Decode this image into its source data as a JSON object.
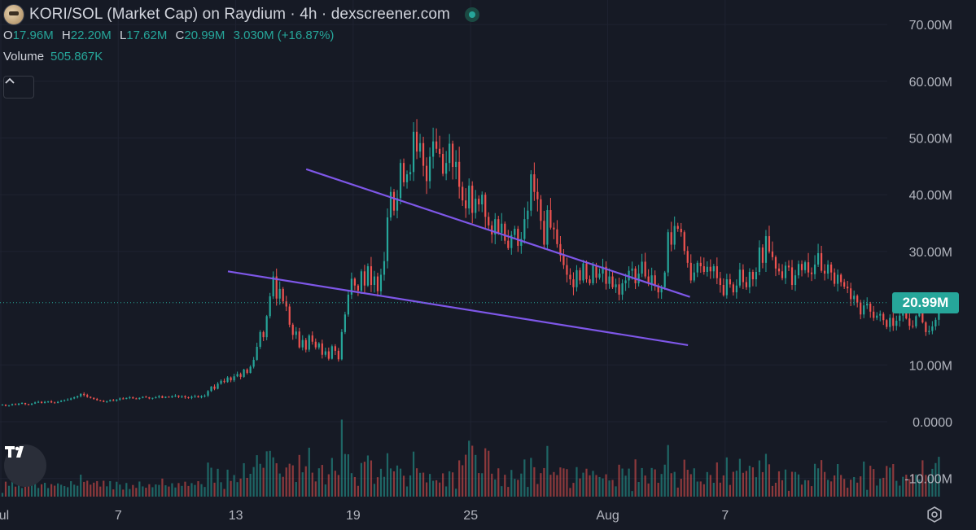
{
  "header": {
    "title": "KORI/SOL (Market Cap) on Raydium · 4h · dexscreener.com",
    "ohlc": [
      {
        "key": "O",
        "value": "17.96M"
      },
      {
        "key": "H",
        "value": "22.20M"
      },
      {
        "key": "L",
        "value": "17.62M"
      },
      {
        "key": "C",
        "value": "20.99M"
      },
      {
        "key": "",
        "value": "3.030M (+16.87%)"
      }
    ],
    "volume_label": "Volume",
    "volume_value": "505.867K"
  },
  "icons": {
    "logo": "token-avatar-icon",
    "live": "live-status-icon",
    "collapse": "chevron-up-icon",
    "brand": "tradingview-logo-icon",
    "settings": "settings-gear-icon"
  },
  "colors": {
    "background": "#161a25",
    "up": "#26a69a",
    "down": "#ef5350",
    "trendline": "#7e57e8",
    "last_price_line": "#26a69a"
  },
  "price_label": "20.99M",
  "chart_data": {
    "type": "candlestick",
    "timeframe": "4h",
    "y_axis": {
      "ticks": [
        70,
        60,
        50,
        40,
        30,
        10,
        0,
        -10
      ],
      "tick_labels": [
        "70.00M",
        "60.00M",
        "50.00M",
        "40.00M",
        "30.00M",
        "10.00M",
        "0.0000",
        "-10.00M"
      ],
      "range": [
        -12,
        75
      ],
      "unit": "M"
    },
    "x_axis": {
      "ticks": [
        0,
        6,
        12,
        18,
        24,
        31,
        37
      ],
      "tick_labels": [
        "Jul",
        "7",
        "13",
        "19",
        "25",
        "Aug",
        "7"
      ],
      "unit": "days since Jul 1"
    },
    "grid": true,
    "last_price": 20.99,
    "closes": [
      3.0,
      2.8,
      2.9,
      3.1,
      3.0,
      3.2,
      3.3,
      3.1,
      3.0,
      3.2,
      3.4,
      3.5,
      3.3,
      3.5,
      3.6,
      3.4,
      3.3,
      3.5,
      3.7,
      3.8,
      3.9,
      4.1,
      4.3,
      4.5,
      4.9,
      4.7,
      4.4,
      4.2,
      4.0,
      3.8,
      3.7,
      3.5,
      3.6,
      3.8,
      3.7,
      3.9,
      4.1,
      4.0,
      4.2,
      4.3,
      4.1,
      4.0,
      4.2,
      4.4,
      4.3,
      4.1,
      4.2,
      4.3,
      4.5,
      4.2,
      4.4,
      4.3,
      4.5,
      4.6,
      4.4,
      4.5,
      4.3,
      4.2,
      4.4,
      4.5,
      4.3,
      4.5,
      4.6,
      5.4,
      6.2,
      5.8,
      6.7,
      7.2,
      7.0,
      7.8,
      7.3,
      8.0,
      8.4,
      7.9,
      9.2,
      8.6,
      9.7,
      10.9,
      13.2,
      15.8,
      14.9,
      18.6,
      22.1,
      25.6,
      21.7,
      23.4,
      21.2,
      20.3,
      17.1,
      15.3,
      15.9,
      13.1,
      14.4,
      12.7,
      15.2,
      14.1,
      13.1,
      13.8,
      11.8,
      12.4,
      11.1,
      13.3,
      12.5,
      11.0,
      15.8,
      18.9,
      22.4,
      25.2,
      24.0,
      23.1,
      26.5,
      24.0,
      27.4,
      24.1,
      25.6,
      23.0,
      25.9,
      28.3,
      36.0,
      40.5,
      37.2,
      39.4,
      45.6,
      42.2,
      43.6,
      44.0,
      51.1,
      47.6,
      49.1,
      45.1,
      42.4,
      46.7,
      49.4,
      48.1,
      47.2,
      43.7,
      45.6,
      49.0,
      44.9,
      45.8,
      41.4,
      39.0,
      37.6,
      41.6,
      36.8,
      39.3,
      38.3,
      40.0,
      36.1,
      34.6,
      33.0,
      35.7,
      33.3,
      34.9,
      31.9,
      30.6,
      32.9,
      34.0,
      31.0,
      32.2,
      35.7,
      37.2,
      43.6,
      40.5,
      39.2,
      35.4,
      31.2,
      37.3,
      34.2,
      33.9,
      31.3,
      29.3,
      27.6,
      25.9,
      25.1,
      23.7,
      26.7,
      24.9,
      27.9,
      25.1,
      24.4,
      27.6,
      25.4,
      26.1,
      27.3,
      24.3,
      25.6,
      23.7,
      24.2,
      22.4,
      24.4,
      24.9,
      26.6,
      27.0,
      24.4,
      26.1,
      28.2,
      25.6,
      24.3,
      25.8,
      24.0,
      22.8,
      23.7,
      26.3,
      33.4,
      31.2,
      34.5,
      34.0,
      33.4,
      30.1,
      28.0,
      24.9,
      26.3,
      28.0,
      27.4,
      26.4,
      27.3,
      26.5,
      27.4,
      25.3,
      24.1,
      22.3,
      25.1,
      24.2,
      22.8,
      24.0,
      26.8,
      24.6,
      23.7,
      26.4,
      25.1,
      26.4,
      30.7,
      28.0,
      32.7,
      30.0,
      29.0,
      27.0,
      26.5,
      25.3,
      27.5,
      27.2,
      24.1,
      25.8,
      27.8,
      26.7,
      28.1,
      26.3,
      26.0,
      27.7,
      29.7,
      26.6,
      26.1,
      27.7,
      26.3,
      24.3,
      25.9,
      24.6,
      23.8,
      23.5,
      21.6,
      22.2,
      21.0,
      18.9,
      20.5,
      20.8,
      19.4,
      18.3,
      18.7,
      19.0,
      17.9,
      16.7,
      18.3,
      16.9,
      17.8,
      18.7,
      19.1,
      18.2,
      16.9,
      16.8,
      18.6,
      19.5,
      17.5,
      15.8,
      16.0,
      16.8,
      17.96,
      20.99
    ],
    "volume_labels": {
      "latest": "505.867K"
    },
    "trendlines": [
      {
        "name": "upper",
        "from": {
          "x": 15.6,
          "y": 44.5
        },
        "to": {
          "x": 35.2,
          "y": 22.0
        }
      },
      {
        "name": "lower",
        "from": {
          "x": 11.6,
          "y": 26.5
        },
        "to": {
          "x": 35.1,
          "y": 13.5
        }
      }
    ]
  }
}
